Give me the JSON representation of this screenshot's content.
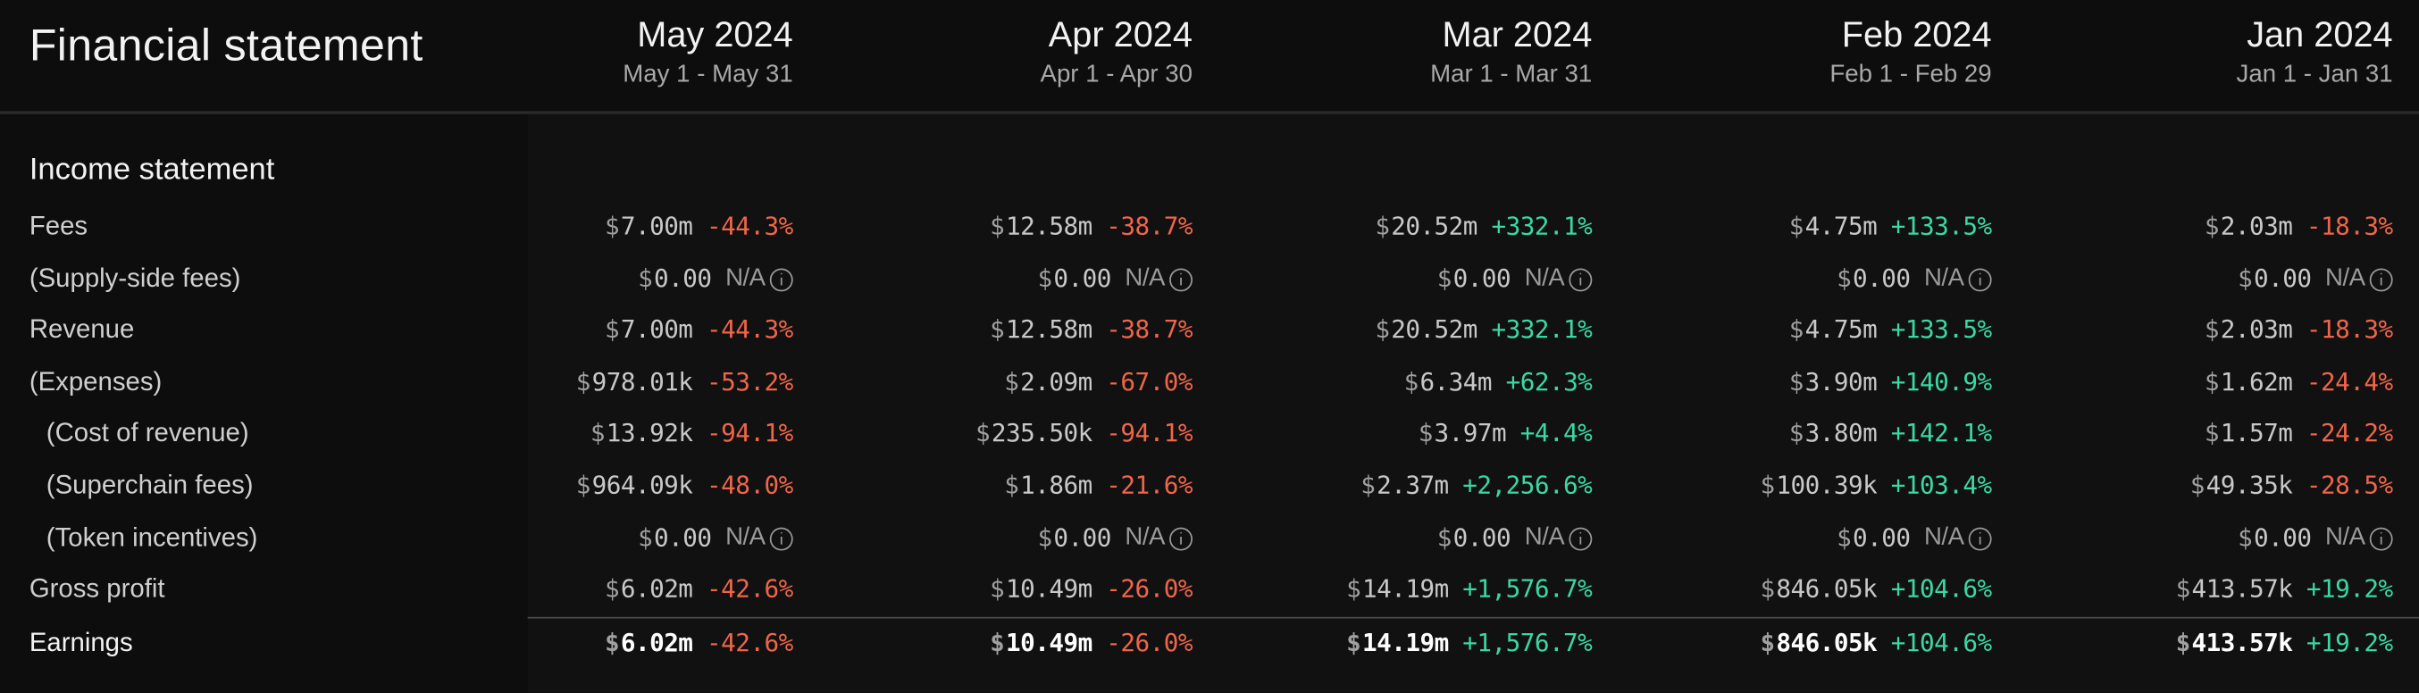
{
  "title": "Financial statement",
  "columns": [
    {
      "month": "May 2024",
      "range": "May 1 - May 31"
    },
    {
      "month": "Apr 2024",
      "range": "Apr 1 - Apr 30"
    },
    {
      "month": "Mar 2024",
      "range": "Mar 1 - Mar 31"
    },
    {
      "month": "Feb 2024",
      "range": "Feb 1 - Feb 29"
    },
    {
      "month": "Jan 2024",
      "range": "Jan 1 - Jan 31"
    }
  ],
  "section_title": "Income statement",
  "currency_symbol": "$",
  "na_label": "N/A",
  "colors": {
    "negative": "#f0654a",
    "positive": "#3ad8a4",
    "background": "#0d0d0d"
  },
  "rows": [
    {
      "label": "Fees",
      "indent": false,
      "bold": false,
      "cells": [
        {
          "value": "7.00m",
          "change": "-44.3%"
        },
        {
          "value": "12.58m",
          "change": "-38.7%"
        },
        {
          "value": "20.52m",
          "change": "+332.1%"
        },
        {
          "value": "4.75m",
          "change": "+133.5%"
        },
        {
          "value": "2.03m",
          "change": "-18.3%"
        }
      ]
    },
    {
      "label": "(Supply-side fees)",
      "indent": false,
      "bold": false,
      "cells": [
        {
          "value": "0.00",
          "change": null
        },
        {
          "value": "0.00",
          "change": null
        },
        {
          "value": "0.00",
          "change": null
        },
        {
          "value": "0.00",
          "change": null
        },
        {
          "value": "0.00",
          "change": null
        }
      ]
    },
    {
      "label": "Revenue",
      "indent": false,
      "bold": false,
      "cells": [
        {
          "value": "7.00m",
          "change": "-44.3%"
        },
        {
          "value": "12.58m",
          "change": "-38.7%"
        },
        {
          "value": "20.52m",
          "change": "+332.1%"
        },
        {
          "value": "4.75m",
          "change": "+133.5%"
        },
        {
          "value": "2.03m",
          "change": "-18.3%"
        }
      ]
    },
    {
      "label": "(Expenses)",
      "indent": false,
      "bold": false,
      "cells": [
        {
          "value": "978.01k",
          "change": "-53.2%"
        },
        {
          "value": "2.09m",
          "change": "-67.0%"
        },
        {
          "value": "6.34m",
          "change": "+62.3%"
        },
        {
          "value": "3.90m",
          "change": "+140.9%"
        },
        {
          "value": "1.62m",
          "change": "-24.4%"
        }
      ]
    },
    {
      "label": "(Cost of revenue)",
      "indent": true,
      "bold": false,
      "cells": [
        {
          "value": "13.92k",
          "change": "-94.1%"
        },
        {
          "value": "235.50k",
          "change": "-94.1%"
        },
        {
          "value": "3.97m",
          "change": "+4.4%"
        },
        {
          "value": "3.80m",
          "change": "+142.1%"
        },
        {
          "value": "1.57m",
          "change": "-24.2%"
        }
      ]
    },
    {
      "label": "(Superchain fees)",
      "indent": true,
      "bold": false,
      "cells": [
        {
          "value": "964.09k",
          "change": "-48.0%"
        },
        {
          "value": "1.86m",
          "change": "-21.6%"
        },
        {
          "value": "2.37m",
          "change": "+2,256.6%"
        },
        {
          "value": "100.39k",
          "change": "+103.4%"
        },
        {
          "value": "49.35k",
          "change": "-28.5%"
        }
      ]
    },
    {
      "label": "(Token incentives)",
      "indent": true,
      "bold": false,
      "cells": [
        {
          "value": "0.00",
          "change": null
        },
        {
          "value": "0.00",
          "change": null
        },
        {
          "value": "0.00",
          "change": null
        },
        {
          "value": "0.00",
          "change": null
        },
        {
          "value": "0.00",
          "change": null
        }
      ]
    },
    {
      "label": "Gross profit",
      "indent": false,
      "bold": false,
      "cells": [
        {
          "value": "6.02m",
          "change": "-42.6%"
        },
        {
          "value": "10.49m",
          "change": "-26.0%"
        },
        {
          "value": "14.19m",
          "change": "+1,576.7%"
        },
        {
          "value": "846.05k",
          "change": "+104.6%"
        },
        {
          "value": "413.57k",
          "change": "+19.2%"
        }
      ]
    },
    {
      "label": "Earnings",
      "indent": false,
      "bold": true,
      "cells": [
        {
          "value": "6.02m",
          "change": "-42.6%"
        },
        {
          "value": "10.49m",
          "change": "-26.0%"
        },
        {
          "value": "14.19m",
          "change": "+1,576.7%"
        },
        {
          "value": "846.05k",
          "change": "+104.6%"
        },
        {
          "value": "413.57k",
          "change": "+19.2%"
        }
      ]
    }
  ]
}
